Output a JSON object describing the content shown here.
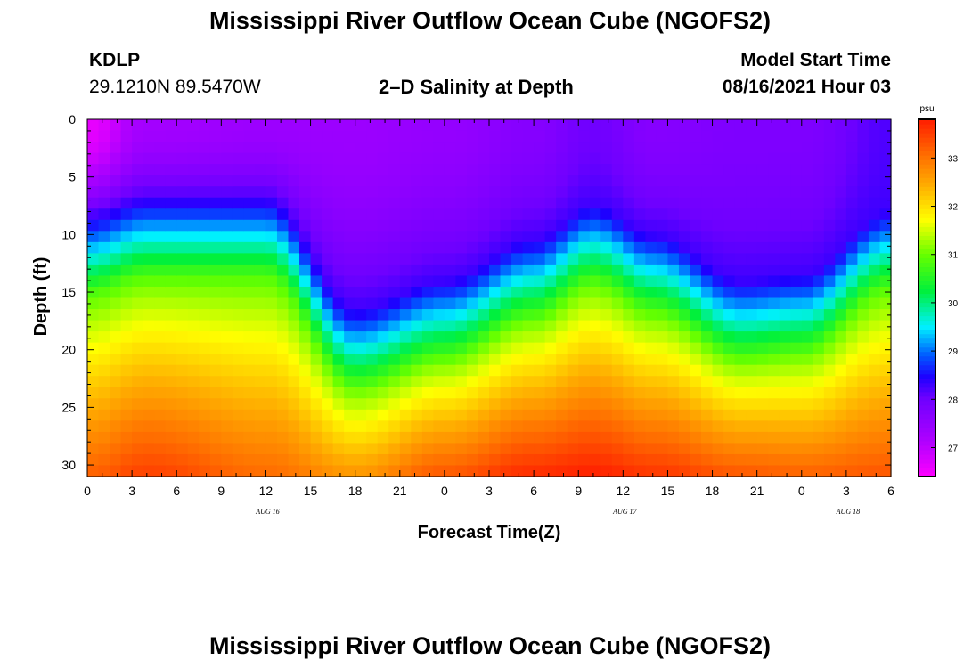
{
  "page": {
    "title_top": "Mississippi River Outflow Ocean Cube (NGOFS2)",
    "title_bottom": "Mississippi River Outflow Ocean Cube (NGOFS2)",
    "station_id": "KDLP",
    "station_coords": "29.1210N  89.5470W",
    "plot_title": "2–D Salinity at Depth",
    "model_start_label": "Model Start Time",
    "model_start_value": "08/16/2021 Hour 03"
  },
  "chart_data": {
    "type": "heatmap",
    "title": "2–D Salinity at Depth",
    "xlabel": "Forecast Time(Z)",
    "ylabel": "Depth (ft)",
    "x_hours_range": [
      0,
      54
    ],
    "y_range_ft": [
      0,
      31
    ],
    "y_inverted": true,
    "x_tick_labels": [
      "0",
      "3",
      "6",
      "9",
      "12",
      "15",
      "18",
      "21",
      "0",
      "3",
      "6",
      "9",
      "12",
      "15",
      "18",
      "21",
      "0",
      "3",
      "6"
    ],
    "x_tick_hours": [
      0,
      3,
      6,
      9,
      12,
      15,
      18,
      21,
      24,
      27,
      30,
      33,
      36,
      39,
      42,
      45,
      48,
      51,
      54
    ],
    "y_tick_labels": [
      "0",
      "5",
      "10",
      "15",
      "20",
      "25",
      "30"
    ],
    "y_tick_values": [
      0,
      5,
      10,
      15,
      20,
      25,
      30
    ],
    "date_labels": [
      {
        "text": "AUG 16",
        "hour": 12
      },
      {
        "text": "AUG 17",
        "hour": 36
      },
      {
        "text": "AUG 18",
        "hour": 51
      }
    ],
    "colorbar": {
      "unit": "psu",
      "range": [
        26.4,
        33.8
      ],
      "tick_labels": [
        "27",
        "28",
        "29",
        "30",
        "31",
        "32",
        "33"
      ],
      "tick_values": [
        27,
        28,
        29,
        30,
        31,
        32,
        33
      ]
    },
    "salinity_field": {
      "description": "depth-time salinity section (psu) by hour",
      "hours": [
        0,
        4,
        12,
        18,
        24,
        30,
        34,
        38,
        44,
        48,
        54
      ],
      "surface_salinity": [
        26.6,
        27.3,
        27.4,
        27.4,
        27.5,
        27.7,
        28.0,
        27.7,
        27.8,
        27.8,
        28.2
      ],
      "pycnocline_depth_ft": [
        11.5,
        10.0,
        10.0,
        19.5,
        17.0,
        13.5,
        10.5,
        13.0,
        17.0,
        16.5,
        11.0
      ],
      "bottom_salinity": [
        33.2,
        33.5,
        33.1,
        32.7,
        33.3,
        33.7,
        33.8,
        33.6,
        33.3,
        33.2,
        33.3
      ]
    }
  }
}
